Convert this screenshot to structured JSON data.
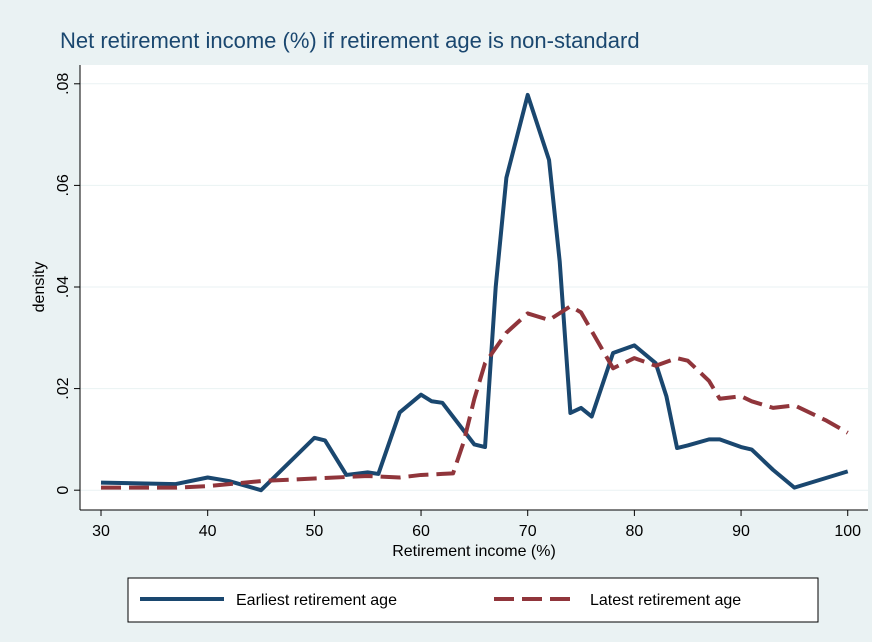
{
  "chart_data": {
    "type": "line",
    "title": "Net retirement income (%) if retirement age is non-standard",
    "x_label": "Retirement income (%)",
    "y_label": "density",
    "xlim": [
      28.03,
      101.9
    ],
    "xticks": [
      30,
      40,
      50,
      60,
      70,
      80,
      90,
      100
    ],
    "ylim": [
      -0.0039,
      0.0837
    ],
    "yticks": [
      0,
      {
        "value": 0.02,
        "label": ".02"
      },
      {
        "value": 0.04,
        "label": ".04"
      },
      {
        "value": 0.06,
        "label": ".06"
      },
      {
        "value": 0.08,
        "label": ".08"
      }
    ],
    "grid": true,
    "legend": "bottom",
    "series": [
      {
        "name": "Earliest retirement age",
        "color": "#1a476f",
        "dash": false,
        "x": [
          30,
          37,
          40,
          42,
          45,
          50,
          51,
          53,
          55,
          56,
          58,
          60,
          61,
          62,
          65,
          66,
          67,
          68,
          70,
          72,
          73,
          74,
          75,
          76,
          78,
          80,
          82,
          83,
          84,
          85,
          87,
          88,
          90,
          91,
          93,
          95,
          100
        ],
        "values": [
          0.0015,
          0.0012,
          0.0025,
          0.0018,
          0,
          0.0103,
          0.0098,
          0.003,
          0.0035,
          0.0032,
          0.0153,
          0.0188,
          0.0175,
          0.0172,
          0.009,
          0.0085,
          0.04,
          0.0615,
          0.0778,
          0.065,
          0.045,
          0.0152,
          0.0162,
          0.0145,
          0.027,
          0.0285,
          0.025,
          0.0185,
          0.0083,
          0.0088,
          0.01,
          0.01,
          0.0085,
          0.008,
          0.004,
          0.0005,
          0.0037
        ]
      },
      {
        "name": "Latest retirement age",
        "color": "#90353b",
        "dash": true,
        "x": [
          30,
          37,
          40,
          45,
          50,
          55,
          58,
          60,
          62,
          63,
          64,
          65,
          66,
          68,
          70,
          72,
          74,
          75,
          78,
          80,
          82,
          84,
          85,
          87,
          88,
          90,
          91,
          93,
          95,
          98,
          100
        ],
        "values": [
          0.0005,
          0.0005,
          0.0008,
          0.0018,
          0.0023,
          0.0028,
          0.0025,
          0.003,
          0.0032,
          0.0033,
          0.0095,
          0.018,
          0.025,
          0.031,
          0.0348,
          0.0335,
          0.0362,
          0.035,
          0.024,
          0.026,
          0.0245,
          0.026,
          0.0255,
          0.0215,
          0.018,
          0.0185,
          0.0175,
          0.0162,
          0.0167,
          0.0137,
          0.0113
        ]
      }
    ]
  }
}
